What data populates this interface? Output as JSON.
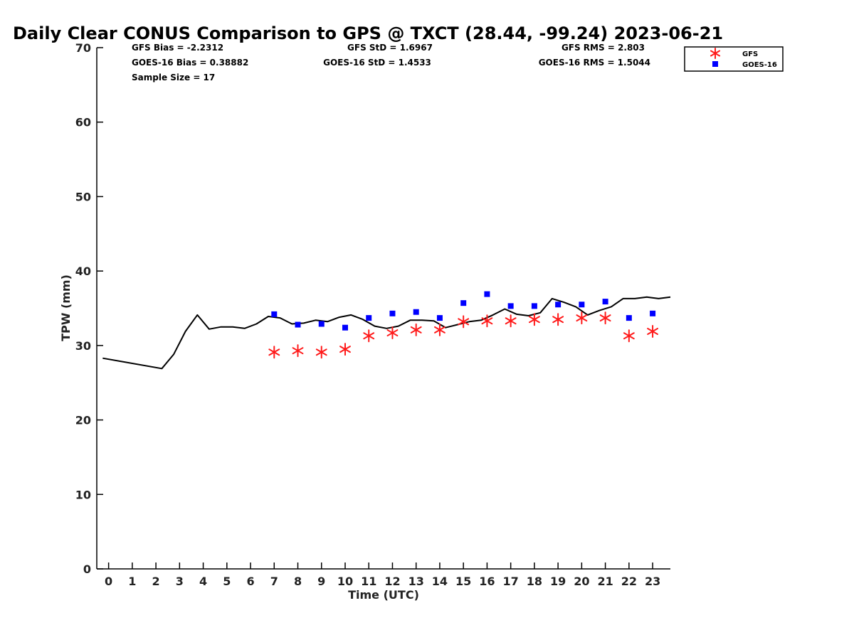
{
  "chart_data": {
    "type": "line",
    "title": "Daily Clear CONUS Comparison to GPS @ TXCT (28.44, -99.24) 2023-06-21",
    "xlabel": "Time (UTC)",
    "ylabel": "TPW (mm)",
    "xlim": [
      -0.5,
      23.75
    ],
    "ylim": [
      0,
      70
    ],
    "xticks": [
      0,
      1,
      2,
      3,
      4,
      5,
      6,
      7,
      8,
      9,
      10,
      11,
      12,
      13,
      14,
      15,
      16,
      17,
      18,
      19,
      20,
      21,
      22,
      23
    ],
    "yticks": [
      0,
      10,
      20,
      30,
      40,
      50,
      60,
      70
    ],
    "grid": false,
    "legend_position": "top-right",
    "stats": {
      "gfs_bias": "GFS Bias = -2.2312",
      "gfs_std": "GFS StD = 1.6967",
      "gfs_rms": "GFS RMS = 2.803",
      "goes_bias": "GOES-16 Bias = 0.38882",
      "goes_std": "GOES-16 StD = 1.4533",
      "goes_rms": "GOES-16 RMS = 1.5044",
      "sample_size": "Sample Size = 17"
    },
    "series": [
      {
        "kind": "line",
        "color": "#000000",
        "x": [
          -0.25,
          2.25,
          2.75,
          3.25,
          3.75,
          4.25,
          4.75,
          5.25,
          5.75,
          6.25,
          6.75,
          7.25,
          7.75,
          8.25,
          8.75,
          9.25,
          9.75,
          10.25,
          10.75,
          11.25,
          11.75,
          12.25,
          12.75,
          13.25,
          13.75,
          14.25,
          14.75,
          15.25,
          15.75,
          16.25,
          16.75,
          17.25,
          17.75,
          18.25,
          18.75,
          19.25,
          19.75,
          20.25,
          20.75,
          21.25,
          21.75,
          22.25,
          22.75,
          23.25,
          23.75
        ],
        "y": [
          28.3,
          26.9,
          28.8,
          31.9,
          34.1,
          32.2,
          32.5,
          32.5,
          32.3,
          32.9,
          33.9,
          33.7,
          32.9,
          33.0,
          33.4,
          33.2,
          33.8,
          34.1,
          33.5,
          32.6,
          32.3,
          32.6,
          33.4,
          33.4,
          33.3,
          32.4,
          32.8,
          33.2,
          33.4,
          34.1,
          34.9,
          34.2,
          34.0,
          34.4,
          36.3,
          35.8,
          35.2,
          34.1,
          34.7,
          35.2,
          36.3,
          36.3,
          36.5,
          36.3,
          36.5
        ]
      },
      {
        "name": "GFS",
        "kind": "scatter",
        "marker": "asterisk",
        "color": "#ff1a1a",
        "x": [
          7,
          8,
          9,
          10,
          11,
          12,
          13,
          14,
          15,
          16,
          17,
          18,
          19,
          20,
          21,
          22,
          23
        ],
        "y": [
          29.1,
          29.3,
          29.1,
          29.5,
          31.3,
          31.7,
          32.1,
          32.1,
          33.2,
          33.3,
          33.3,
          33.5,
          33.5,
          33.7,
          33.7,
          31.3,
          31.9
        ]
      },
      {
        "name": "GOES-16",
        "kind": "scatter",
        "marker": "square",
        "color": "#0000ff",
        "x": [
          7,
          8,
          9,
          10,
          11,
          12,
          13,
          14,
          15,
          16,
          17,
          18,
          19,
          20,
          21,
          22,
          23
        ],
        "y": [
          34.2,
          32.8,
          32.9,
          32.4,
          33.7,
          34.3,
          34.5,
          33.7,
          35.7,
          36.9,
          35.3,
          35.3,
          35.5,
          35.5,
          35.9,
          33.7,
          34.3
        ]
      }
    ]
  }
}
